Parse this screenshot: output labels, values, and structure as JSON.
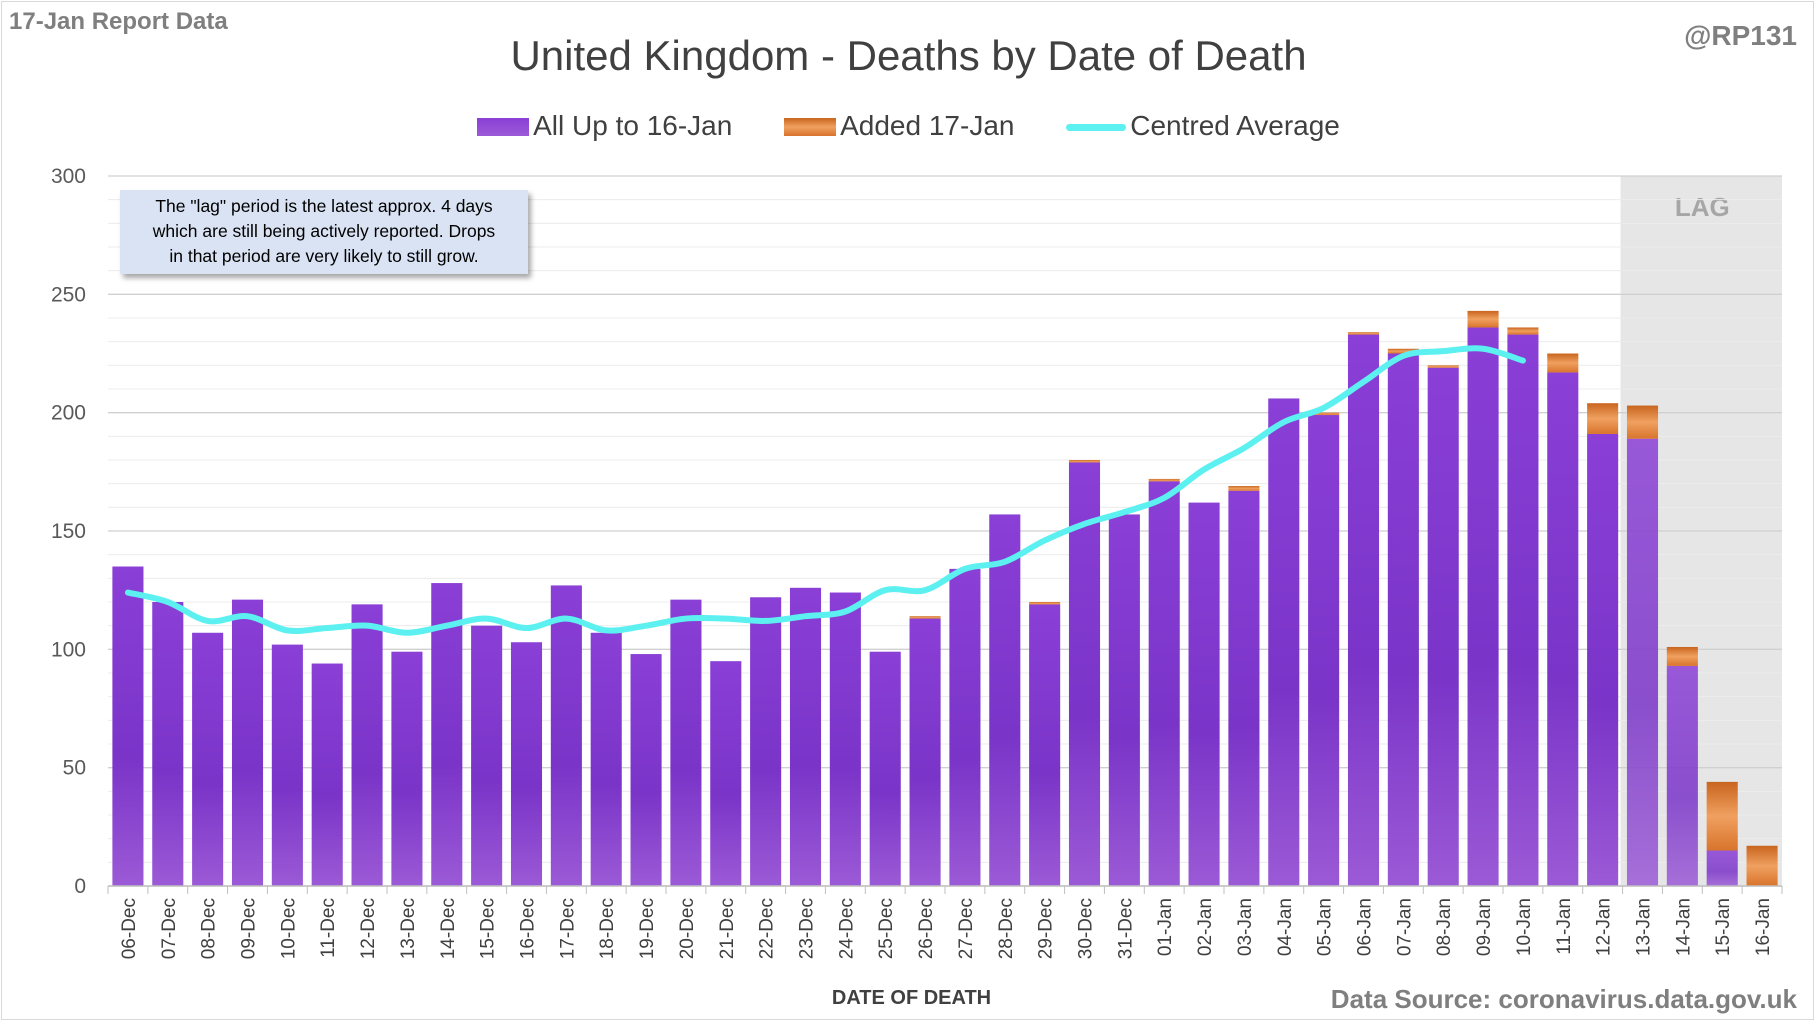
{
  "header": {
    "report_label": "17-Jan Report Data",
    "author": "@RP131"
  },
  "footer": {
    "source": "Data Source: coronavirus.data.gov.uk"
  },
  "annotation": {
    "line1": "The \"lag\" period is the latest approx. 4 days",
    "line2": "which are still being actively reported.  Drops",
    "line3": "in that period are very likely to still grow."
  },
  "colors": {
    "series_base": "#7b35c4",
    "series_added": "#e07b33",
    "average": "#5cf0f0",
    "lag_band": "#e6e6e6"
  },
  "chart_data": {
    "type": "bar",
    "stacked": true,
    "title": "United Kingdom - Deaths by Date of Death",
    "xlabel": "DATE OF DEATH",
    "ylabel": "",
    "ylim": [
      0,
      300
    ],
    "yticks": [
      0,
      50,
      100,
      150,
      200,
      250,
      300
    ],
    "grid": true,
    "legend_position": "top",
    "categories": [
      "06-Dec",
      "07-Dec",
      "08-Dec",
      "09-Dec",
      "10-Dec",
      "11-Dec",
      "12-Dec",
      "13-Dec",
      "14-Dec",
      "15-Dec",
      "16-Dec",
      "17-Dec",
      "18-Dec",
      "19-Dec",
      "20-Dec",
      "21-Dec",
      "22-Dec",
      "23-Dec",
      "24-Dec",
      "25-Dec",
      "26-Dec",
      "27-Dec",
      "28-Dec",
      "29-Dec",
      "30-Dec",
      "31-Dec",
      "01-Jan",
      "02-Jan",
      "03-Jan",
      "04-Jan",
      "05-Jan",
      "06-Jan",
      "07-Jan",
      "08-Jan",
      "09-Jan",
      "10-Jan",
      "11-Jan",
      "12-Jan",
      "13-Jan",
      "14-Jan",
      "15-Jan",
      "16-Jan"
    ],
    "series": [
      {
        "name": "All Up to 16-Jan",
        "values": [
          135,
          120,
          107,
          121,
          102,
          94,
          119,
          99,
          128,
          110,
          103,
          127,
          107,
          98,
          121,
          95,
          122,
          126,
          124,
          99,
          113,
          134,
          157,
          119,
          179,
          157,
          171,
          162,
          167,
          206,
          199,
          233,
          225,
          219,
          236,
          233,
          217,
          191,
          189,
          93,
          15,
          0
        ]
      },
      {
        "name": "Added 17-Jan",
        "values": [
          0,
          0,
          0,
          0,
          0,
          0,
          0,
          0,
          0,
          0,
          0,
          0,
          0,
          0,
          0,
          0,
          0,
          0,
          0,
          0,
          1,
          0,
          0,
          1,
          1,
          0,
          1,
          0,
          2,
          0,
          1,
          1,
          2,
          1,
          7,
          3,
          8,
          13,
          14,
          8,
          29,
          17
        ]
      },
      {
        "name": "Centred Average",
        "type": "line",
        "values": [
          124,
          120,
          112,
          114,
          108,
          109,
          110,
          107,
          110,
          113,
          109,
          113,
          108,
          110,
          113,
          113,
          112,
          114,
          116,
          125,
          125,
          134,
          137,
          146,
          153,
          158,
          164,
          176,
          185,
          196,
          202,
          213,
          224,
          226,
          227,
          222,
          null,
          null,
          null,
          null,
          null,
          null
        ]
      }
    ],
    "lag_region": {
      "label": "LAG",
      "start": "13-Jan",
      "end": "16-Jan"
    }
  }
}
